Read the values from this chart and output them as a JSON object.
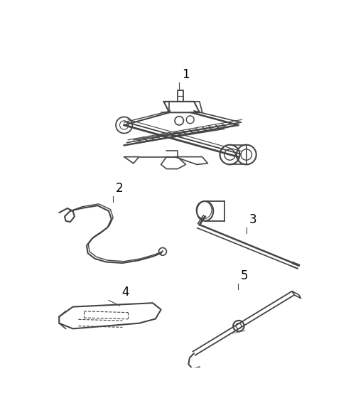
{
  "background_color": "#ffffff",
  "line_color": "#444444",
  "label_color": "#000000",
  "fig_width": 4.8,
  "fig_height": 5.81
}
